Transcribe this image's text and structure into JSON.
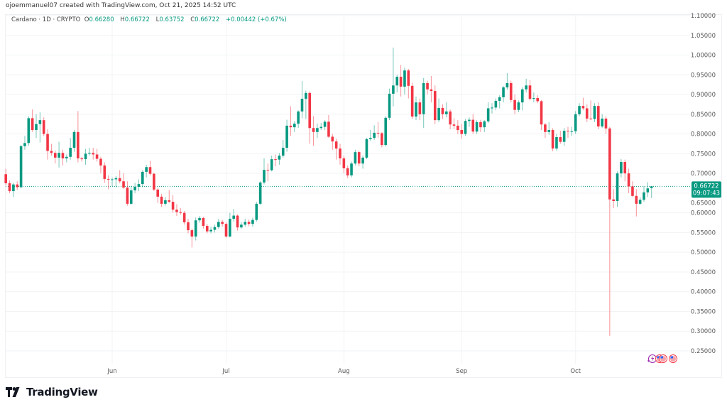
{
  "credit": "ojoemmanuel07 created with TradingView.com, Oct 21, 2025 14:52 UTC",
  "legend": {
    "symbol": "Cardano · 1D · CRYPTO",
    "o_label": "O",
    "o": "0.66280",
    "h_label": "H",
    "h": "0.66722",
    "l_label": "L",
    "l": "0.63752",
    "c_label": "C",
    "c": "0.66722",
    "change": "+0.00442 (+0.67%)"
  },
  "price_tag": {
    "price": "0.66722",
    "countdown": "09:07:43"
  },
  "footer": {
    "brand": "TradingView"
  },
  "colors": {
    "up": "#089981",
    "down": "#F23645",
    "grid": "#f2f3f5",
    "axis_text": "#555"
  },
  "chart_data": {
    "type": "candlestick",
    "title": "",
    "grid": true,
    "ylim": [
      0.22,
      1.11
    ],
    "y_ticks": [
      "0.25000",
      "0.30000",
      "0.35000",
      "0.40000",
      "0.45000",
      "0.50000",
      "0.55000",
      "0.60000",
      "0.65000",
      "0.70000",
      "0.75000",
      "0.80000",
      "0.85000",
      "0.90000",
      "0.95000",
      "1.00000",
      "1.05000",
      "1.10000"
    ],
    "x_ticks": [
      {
        "label": "Jun",
        "date": "2025-06-01"
      },
      {
        "label": "Jul",
        "date": "2025-07-01"
      },
      {
        "label": "Aug",
        "date": "2025-08-01"
      },
      {
        "label": "Sep",
        "date": "2025-09-01"
      },
      {
        "label": "Oct",
        "date": "2025-10-01"
      }
    ],
    "last_price": 0.66722,
    "events": [
      "crypto-event-icon",
      "us-flag-event-icon",
      "us-flag-event-icon",
      "us-flag-event-icon"
    ],
    "candles": [
      [
        "2025-05-04",
        0.698,
        0.712,
        0.67,
        0.675
      ],
      [
        "2025-05-05",
        0.675,
        0.682,
        0.65,
        0.655
      ],
      [
        "2025-05-06",
        0.655,
        0.676,
        0.64,
        0.672
      ],
      [
        "2025-05-07",
        0.672,
        0.68,
        0.658,
        0.665
      ],
      [
        "2025-05-08",
        0.665,
        0.772,
        0.662,
        0.769
      ],
      [
        "2025-05-09",
        0.769,
        0.795,
        0.76,
        0.777
      ],
      [
        "2025-05-10",
        0.777,
        0.845,
        0.77,
        0.84
      ],
      [
        "2025-05-11",
        0.84,
        0.862,
        0.805,
        0.81
      ],
      [
        "2025-05-12",
        0.81,
        0.85,
        0.79,
        0.825
      ],
      [
        "2025-05-13",
        0.825,
        0.855,
        0.778,
        0.835
      ],
      [
        "2025-05-14",
        0.835,
        0.842,
        0.795,
        0.8
      ],
      [
        "2025-05-15",
        0.8,
        0.812,
        0.735,
        0.757
      ],
      [
        "2025-05-16",
        0.757,
        0.775,
        0.745,
        0.752
      ],
      [
        "2025-05-17",
        0.752,
        0.758,
        0.725,
        0.74
      ],
      [
        "2025-05-18",
        0.74,
        0.78,
        0.715,
        0.752
      ],
      [
        "2025-05-19",
        0.752,
        0.76,
        0.72,
        0.738
      ],
      [
        "2025-05-20",
        0.738,
        0.748,
        0.728,
        0.742
      ],
      [
        "2025-05-21",
        0.742,
        0.79,
        0.735,
        0.765
      ],
      [
        "2025-05-22",
        0.765,
        0.81,
        0.755,
        0.805
      ],
      [
        "2025-05-23",
        0.805,
        0.858,
        0.728,
        0.738
      ],
      [
        "2025-05-24",
        0.738,
        0.742,
        0.73,
        0.736
      ],
      [
        "2025-05-25",
        0.736,
        0.762,
        0.722,
        0.75
      ],
      [
        "2025-05-26",
        0.75,
        0.765,
        0.745,
        0.752
      ],
      [
        "2025-05-27",
        0.752,
        0.765,
        0.735,
        0.748
      ],
      [
        "2025-05-28",
        0.748,
        0.762,
        0.73,
        0.737
      ],
      [
        "2025-05-29",
        0.737,
        0.742,
        0.7,
        0.72
      ],
      [
        "2025-05-30",
        0.72,
        0.728,
        0.676,
        0.686
      ],
      [
        "2025-05-31",
        0.686,
        0.695,
        0.66,
        0.685
      ],
      [
        "2025-06-01",
        0.685,
        0.69,
        0.668,
        0.685
      ],
      [
        "2025-06-02",
        0.685,
        0.693,
        0.665,
        0.688
      ],
      [
        "2025-06-03",
        0.688,
        0.708,
        0.675,
        0.68
      ],
      [
        "2025-06-04",
        0.68,
        0.7,
        0.66,
        0.664
      ],
      [
        "2025-06-05",
        0.664,
        0.68,
        0.618,
        0.623
      ],
      [
        "2025-06-06",
        0.623,
        0.668,
        0.62,
        0.657
      ],
      [
        "2025-06-07",
        0.657,
        0.676,
        0.65,
        0.666
      ],
      [
        "2025-06-08",
        0.666,
        0.685,
        0.655,
        0.673
      ],
      [
        "2025-06-09",
        0.673,
        0.708,
        0.665,
        0.704
      ],
      [
        "2025-06-10",
        0.704,
        0.722,
        0.69,
        0.716
      ],
      [
        "2025-06-11",
        0.716,
        0.732,
        0.695,
        0.699
      ],
      [
        "2025-06-12",
        0.699,
        0.702,
        0.655,
        0.659
      ],
      [
        "2025-06-13",
        0.659,
        0.662,
        0.625,
        0.641
      ],
      [
        "2025-06-14",
        0.641,
        0.648,
        0.615,
        0.623
      ],
      [
        "2025-06-15",
        0.623,
        0.64,
        0.618,
        0.632
      ],
      [
        "2025-06-16",
        0.632,
        0.658,
        0.625,
        0.628
      ],
      [
        "2025-06-17",
        0.628,
        0.645,
        0.6,
        0.608
      ],
      [
        "2025-06-18",
        0.608,
        0.622,
        0.592,
        0.602
      ],
      [
        "2025-06-19",
        0.602,
        0.612,
        0.595,
        0.6
      ],
      [
        "2025-06-20",
        0.6,
        0.605,
        0.57,
        0.576
      ],
      [
        "2025-06-21",
        0.576,
        0.585,
        0.548,
        0.556
      ],
      [
        "2025-06-22",
        0.556,
        0.56,
        0.512,
        0.54
      ],
      [
        "2025-06-23",
        0.54,
        0.588,
        0.53,
        0.581
      ],
      [
        "2025-06-24",
        0.581,
        0.592,
        0.575,
        0.587
      ],
      [
        "2025-06-25",
        0.587,
        0.59,
        0.56,
        0.567
      ],
      [
        "2025-06-26",
        0.567,
        0.572,
        0.548,
        0.553
      ],
      [
        "2025-06-27",
        0.553,
        0.565,
        0.548,
        0.557
      ],
      [
        "2025-06-28",
        0.557,
        0.57,
        0.55,
        0.564
      ],
      [
        "2025-06-29",
        0.564,
        0.585,
        0.56,
        0.577
      ],
      [
        "2025-06-30",
        0.577,
        0.582,
        0.565,
        0.572
      ],
      [
        "2025-07-01",
        0.572,
        0.576,
        0.537,
        0.54
      ],
      [
        "2025-07-02",
        0.54,
        0.6,
        0.538,
        0.585
      ],
      [
        "2025-07-03",
        0.585,
        0.61,
        0.578,
        0.593
      ],
      [
        "2025-07-04",
        0.593,
        0.596,
        0.555,
        0.563
      ],
      [
        "2025-07-05",
        0.563,
        0.576,
        0.56,
        0.57
      ],
      [
        "2025-07-06",
        0.57,
        0.585,
        0.565,
        0.577
      ],
      [
        "2025-07-07",
        0.577,
        0.583,
        0.566,
        0.572
      ],
      [
        "2025-07-08",
        0.572,
        0.588,
        0.565,
        0.582
      ],
      [
        "2025-07-09",
        0.582,
        0.628,
        0.578,
        0.623
      ],
      [
        "2025-07-10",
        0.623,
        0.68,
        0.62,
        0.677
      ],
      [
        "2025-07-11",
        0.677,
        0.738,
        0.672,
        0.709
      ],
      [
        "2025-07-12",
        0.709,
        0.725,
        0.68,
        0.708
      ],
      [
        "2025-07-13",
        0.708,
        0.745,
        0.705,
        0.736
      ],
      [
        "2025-07-14",
        0.736,
        0.748,
        0.718,
        0.735
      ],
      [
        "2025-07-15",
        0.735,
        0.752,
        0.722,
        0.745
      ],
      [
        "2025-07-16",
        0.745,
        0.785,
        0.74,
        0.765
      ],
      [
        "2025-07-17",
        0.765,
        0.836,
        0.755,
        0.821
      ],
      [
        "2025-07-18",
        0.821,
        0.87,
        0.795,
        0.817
      ],
      [
        "2025-07-19",
        0.817,
        0.832,
        0.805,
        0.826
      ],
      [
        "2025-07-20",
        0.826,
        0.86,
        0.815,
        0.857
      ],
      [
        "2025-07-21",
        0.857,
        0.934,
        0.84,
        0.889
      ],
      [
        "2025-07-22",
        0.889,
        0.91,
        0.838,
        0.904
      ],
      [
        "2025-07-23",
        0.904,
        0.908,
        0.775,
        0.815
      ],
      [
        "2025-07-24",
        0.815,
        0.845,
        0.77,
        0.805
      ],
      [
        "2025-07-25",
        0.805,
        0.826,
        0.79,
        0.815
      ],
      [
        "2025-07-26",
        0.815,
        0.828,
        0.81,
        0.818
      ],
      [
        "2025-07-27",
        0.818,
        0.835,
        0.81,
        0.831
      ],
      [
        "2025-07-28",
        0.831,
        0.848,
        0.79,
        0.793
      ],
      [
        "2025-07-29",
        0.793,
        0.8,
        0.76,
        0.781
      ],
      [
        "2025-07-30",
        0.781,
        0.788,
        0.735,
        0.763
      ],
      [
        "2025-07-31",
        0.763,
        0.775,
        0.722,
        0.738
      ],
      [
        "2025-08-01",
        0.738,
        0.745,
        0.7,
        0.713
      ],
      [
        "2025-08-02",
        0.713,
        0.72,
        0.688,
        0.695
      ],
      [
        "2025-08-03",
        0.695,
        0.73,
        0.69,
        0.725
      ],
      [
        "2025-08-04",
        0.725,
        0.76,
        0.72,
        0.754
      ],
      [
        "2025-08-05",
        0.754,
        0.758,
        0.718,
        0.725
      ],
      [
        "2025-08-06",
        0.725,
        0.745,
        0.712,
        0.74
      ],
      [
        "2025-08-07",
        0.74,
        0.79,
        0.736,
        0.787
      ],
      [
        "2025-08-08",
        0.787,
        0.81,
        0.782,
        0.79
      ],
      [
        "2025-08-09",
        0.79,
        0.822,
        0.785,
        0.803
      ],
      [
        "2025-08-10",
        0.803,
        0.83,
        0.79,
        0.802
      ],
      [
        "2025-08-11",
        0.802,
        0.805,
        0.766,
        0.772
      ],
      [
        "2025-08-12",
        0.772,
        0.845,
        0.768,
        0.841
      ],
      [
        "2025-08-13",
        0.841,
        0.915,
        0.835,
        0.902
      ],
      [
        "2025-08-14",
        0.902,
        1.019,
        0.87,
        0.923
      ],
      [
        "2025-08-15",
        0.923,
        0.95,
        0.905,
        0.945
      ],
      [
        "2025-08-16",
        0.945,
        0.975,
        0.895,
        0.92
      ],
      [
        "2025-08-17",
        0.92,
        0.968,
        0.9,
        0.961
      ],
      [
        "2025-08-18",
        0.961,
        0.965,
        0.89,
        0.922
      ],
      [
        "2025-08-19",
        0.922,
        0.93,
        0.838,
        0.844
      ],
      [
        "2025-08-20",
        0.844,
        0.895,
        0.835,
        0.88
      ],
      [
        "2025-08-21",
        0.88,
        0.89,
        0.835,
        0.85
      ],
      [
        "2025-08-22",
        0.85,
        0.942,
        0.815,
        0.929
      ],
      [
        "2025-08-23",
        0.929,
        0.935,
        0.9,
        0.913
      ],
      [
        "2025-08-24",
        0.913,
        0.947,
        0.88,
        0.909
      ],
      [
        "2025-08-25",
        0.909,
        0.923,
        0.825,
        0.835
      ],
      [
        "2025-08-26",
        0.835,
        0.89,
        0.83,
        0.866
      ],
      [
        "2025-08-27",
        0.866,
        0.875,
        0.838,
        0.85
      ],
      [
        "2025-08-28",
        0.85,
        0.88,
        0.842,
        0.857
      ],
      [
        "2025-08-29",
        0.857,
        0.862,
        0.812,
        0.824
      ],
      [
        "2025-08-30",
        0.824,
        0.84,
        0.812,
        0.821
      ],
      [
        "2025-08-31",
        0.821,
        0.835,
        0.8,
        0.81
      ],
      [
        "2025-09-01",
        0.81,
        0.825,
        0.788,
        0.8
      ],
      [
        "2025-09-02",
        0.8,
        0.838,
        0.795,
        0.833
      ],
      [
        "2025-09-03",
        0.833,
        0.842,
        0.818,
        0.836
      ],
      [
        "2025-09-04",
        0.836,
        0.85,
        0.8,
        0.806
      ],
      [
        "2025-09-05",
        0.806,
        0.835,
        0.8,
        0.83
      ],
      [
        "2025-09-06",
        0.83,
        0.836,
        0.805,
        0.817
      ],
      [
        "2025-09-07",
        0.817,
        0.835,
        0.805,
        0.832
      ],
      [
        "2025-09-08",
        0.832,
        0.88,
        0.828,
        0.865
      ],
      [
        "2025-09-09",
        0.865,
        0.878,
        0.852,
        0.867
      ],
      [
        "2025-09-10",
        0.867,
        0.89,
        0.86,
        0.884
      ],
      [
        "2025-09-11",
        0.884,
        0.898,
        0.865,
        0.893
      ],
      [
        "2025-09-12",
        0.893,
        0.922,
        0.88,
        0.918
      ],
      [
        "2025-09-13",
        0.918,
        0.954,
        0.912,
        0.929
      ],
      [
        "2025-09-14",
        0.929,
        0.935,
        0.88,
        0.886
      ],
      [
        "2025-09-15",
        0.886,
        0.9,
        0.85,
        0.861
      ],
      [
        "2025-09-16",
        0.861,
        0.885,
        0.855,
        0.88
      ],
      [
        "2025-09-17",
        0.88,
        0.918,
        0.86,
        0.913
      ],
      [
        "2025-09-18",
        0.913,
        0.94,
        0.905,
        0.923
      ],
      [
        "2025-09-19",
        0.923,
        0.937,
        0.885,
        0.889
      ],
      [
        "2025-09-20",
        0.889,
        0.905,
        0.88,
        0.891
      ],
      [
        "2025-09-21",
        0.891,
        0.898,
        0.878,
        0.883
      ],
      [
        "2025-09-22",
        0.883,
        0.886,
        0.81,
        0.824
      ],
      [
        "2025-09-23",
        0.824,
        0.828,
        0.79,
        0.805
      ],
      [
        "2025-09-24",
        0.805,
        0.83,
        0.798,
        0.81
      ],
      [
        "2025-09-25",
        0.81,
        0.815,
        0.756,
        0.763
      ],
      [
        "2025-09-26",
        0.763,
        0.8,
        0.758,
        0.792
      ],
      [
        "2025-09-27",
        0.792,
        0.808,
        0.775,
        0.78
      ],
      [
        "2025-09-28",
        0.78,
        0.815,
        0.77,
        0.808
      ],
      [
        "2025-09-29",
        0.808,
        0.818,
        0.79,
        0.807
      ],
      [
        "2025-09-30",
        0.807,
        0.818,
        0.795,
        0.807
      ],
      [
        "2025-10-01",
        0.807,
        0.858,
        0.8,
        0.85
      ],
      [
        "2025-10-02",
        0.85,
        0.878,
        0.845,
        0.871
      ],
      [
        "2025-10-03",
        0.871,
        0.892,
        0.86,
        0.865
      ],
      [
        "2025-10-04",
        0.865,
        0.875,
        0.83,
        0.839
      ],
      [
        "2025-10-05",
        0.839,
        0.885,
        0.835,
        0.838
      ],
      [
        "2025-10-06",
        0.838,
        0.878,
        0.83,
        0.871
      ],
      [
        "2025-10-07",
        0.871,
        0.88,
        0.812,
        0.819
      ],
      [
        "2025-10-08",
        0.819,
        0.85,
        0.815,
        0.839
      ],
      [
        "2025-10-09",
        0.839,
        0.845,
        0.8,
        0.814
      ],
      [
        "2025-10-10",
        0.814,
        0.818,
        0.288,
        0.634
      ],
      [
        "2025-10-11",
        0.634,
        0.66,
        0.612,
        0.63
      ],
      [
        "2025-10-12",
        0.63,
        0.705,
        0.615,
        0.7
      ],
      [
        "2025-10-13",
        0.7,
        0.736,
        0.69,
        0.729
      ],
      [
        "2025-10-14",
        0.729,
        0.735,
        0.68,
        0.7
      ],
      [
        "2025-10-15",
        0.7,
        0.712,
        0.65,
        0.667
      ],
      [
        "2025-10-16",
        0.667,
        0.68,
        0.64,
        0.643
      ],
      [
        "2025-10-17",
        0.643,
        0.66,
        0.591,
        0.623
      ],
      [
        "2025-10-18",
        0.623,
        0.64,
        0.62,
        0.633
      ],
      [
        "2025-10-19",
        0.633,
        0.668,
        0.628,
        0.652
      ],
      [
        "2025-10-20",
        0.652,
        0.678,
        0.64,
        0.662
      ],
      [
        "2025-10-21",
        0.6628,
        0.66722,
        0.63752,
        0.66722
      ]
    ]
  }
}
